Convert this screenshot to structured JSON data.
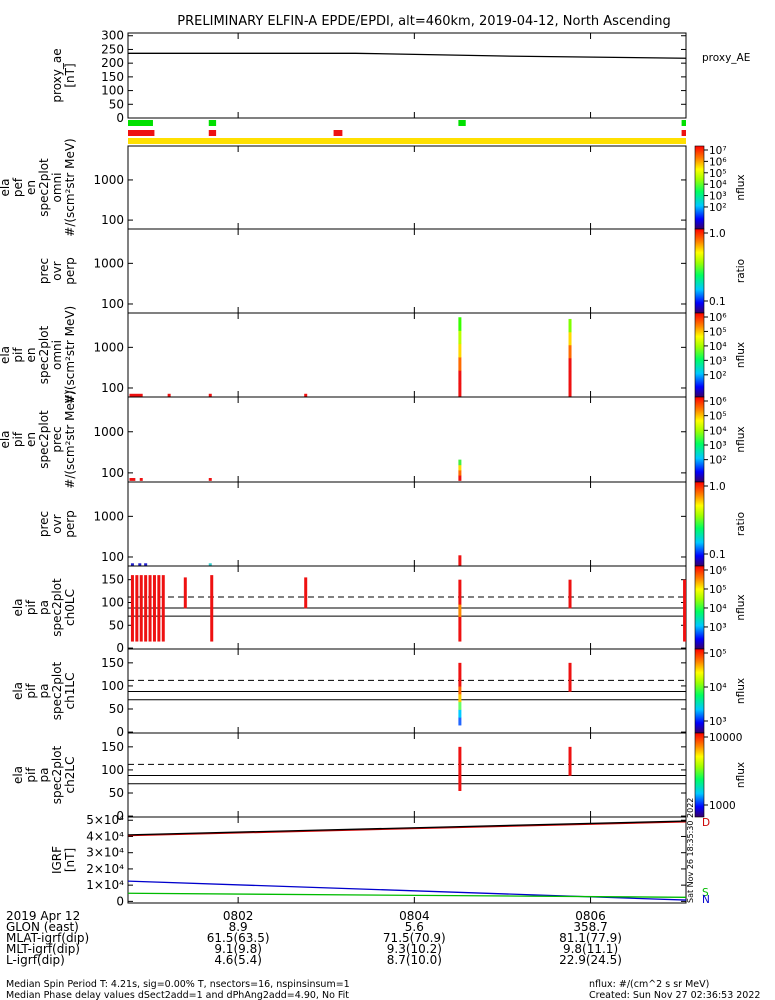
{
  "title": "PRELIMINARY ELFIN-A EPDE/EPDI, alt=460km, 2019-04-12, North Ascending",
  "side_stamp": "Sat Nov 26 18:35:30 2022",
  "footer": {
    "left_lines": [
      "Median Spin Period T: 4.21s, sig=0.00% T, nsectors=16, nspinsinsum=1",
      "Median Phase delay values dSect2add=1 and dPhAng2add=4.90, No Fit"
    ],
    "right_lines": [
      "nflux: #/(cm^2 s sr MeV)",
      "Created: Sun Nov 27 02:36:53 2022"
    ]
  },
  "colorbar_labels": {
    "nflux": "nflux",
    "ratio": "ratio",
    "D": "D",
    "S": "S",
    "N": "N"
  },
  "chart_data": {
    "type": "multi-panel time series / spectrograms",
    "x_axis": {
      "unit": "time (UT)",
      "range": [
        "08:00:45",
        "08:07:05"
      ],
      "tick_labels": [
        "0802",
        "0804",
        "0806"
      ],
      "tick_times": [
        "08:02",
        "08:04",
        "08:06"
      ]
    },
    "orbit_table": {
      "rows": [
        {
          "label": "2019 Apr 12",
          "values": [
            "0802",
            "0804",
            "0806"
          ]
        },
        {
          "label": "GLON (east)",
          "values": [
            "8.9",
            "5.6",
            "358.7"
          ]
        },
        {
          "label": "MLAT-igrf(dip)",
          "values": [
            "61.5(63.5)",
            "71.5(70.9)",
            "81.1(77.9)"
          ]
        },
        {
          "label": "MLT-igrf(dip)",
          "values": [
            "9.1(9.8)",
            "9.3(10.2)",
            "9.8(11.1)"
          ]
        },
        {
          "label": "L-igrf(dip)",
          "values": [
            "4.6(5.4)",
            "8.7(10.0)",
            "22.9(24.5)"
          ]
        }
      ]
    },
    "panels": [
      {
        "id": "proxy_ae",
        "ylabel": [
          "proxy_ae",
          "[nT]"
        ],
        "yticks": [
          "300",
          "250",
          "200",
          "150",
          "100",
          "50",
          "0"
        ],
        "ytick_values": [
          300,
          250,
          200,
          150,
          100,
          50,
          0
        ],
        "ylim": [
          0,
          310
        ],
        "legend": "proxy_AE",
        "series": [
          {
            "name": "proxy_AE",
            "x": [
              "08:00:45",
              "08:03:20",
              "08:05:00",
              "08:07:05"
            ],
            "y": [
              236,
              236,
              226,
              218
            ]
          }
        ]
      },
      {
        "id": "flags",
        "bars": [
          {
            "color": "#00e000",
            "segments": [
              [
                "08:00:45",
                "08:01:02"
              ],
              [
                "08:01:40",
                "08:01:45"
              ],
              [
                "08:04:30",
                "08:04:35"
              ],
              [
                "08:07:02",
                "08:07:05"
              ]
            ]
          },
          {
            "color": "#ee1111",
            "segments": [
              [
                "08:00:45",
                "08:01:03"
              ],
              [
                "08:01:40",
                "08:01:45"
              ],
              [
                "08:03:05",
                "08:03:11"
              ],
              [
                "08:07:02",
                "08:07:05"
              ]
            ]
          },
          {
            "color": "#ffe000",
            "segments": [
              [
                "08:00:45",
                "08:07:05"
              ]
            ]
          }
        ]
      },
      {
        "id": "ela_pef_omni",
        "ylabel": [
          "ela",
          "pef",
          "en",
          "spec2plot",
          "omni",
          "#/(scm²str MeV)"
        ],
        "log": true,
        "yticks": [
          "1000",
          "100"
        ],
        "ytick_values": [
          1000,
          100
        ],
        "ylim": [
          60,
          7000
        ],
        "marks": []
      },
      {
        "id": "pef_prec_ratio",
        "ylabel": [
          "prec",
          "ovr",
          "perp"
        ],
        "log": true,
        "yticks": [
          "1000",
          "100"
        ],
        "ytick_values": [
          1000,
          100
        ],
        "ylim": [
          60,
          7000
        ],
        "marks": []
      },
      {
        "id": "ela_pif_omni",
        "ylabel": [
          "ela",
          "pif",
          "en",
          "spec2plot",
          "omni",
          "#/(scm²str MeV)"
        ],
        "log": true,
        "yticks": [
          "1000",
          "100"
        ],
        "ytick_values": [
          1000,
          100
        ],
        "ylim": [
          60,
          7000
        ],
        "marks": [
          {
            "t": "08:00:46",
            "t2": "08:00:55",
            "y_lo": 60,
            "y_hi": 72,
            "colors": [
              "#ee1111"
            ]
          },
          {
            "t": "08:01:12",
            "y_lo": 62,
            "y_hi": 72,
            "colors": [
              "#ee1111"
            ]
          },
          {
            "t": "08:01:40",
            "y_lo": 62,
            "y_hi": 72,
            "colors": [
              "#ee1111"
            ]
          },
          {
            "t": "08:02:45",
            "y_lo": 62,
            "y_hi": 72,
            "colors": [
              "#ee1111"
            ]
          },
          {
            "t": "08:04:30",
            "y_lo": 60,
            "y_hi": 5500,
            "colors": [
              "#ee1111",
              "#ee1111",
              "#ff6a00",
              "#ffd800",
              "#b8ff00",
              "#38ff00"
            ]
          },
          {
            "t": "08:05:45",
            "y_lo": 60,
            "y_hi": 5000,
            "colors": [
              "#ee1111",
              "#ee1111",
              "#ee1111",
              "#ff6a00",
              "#ffd800",
              "#7fff00"
            ]
          }
        ]
      },
      {
        "id": "ela_pif_prec",
        "ylabel": [
          "ela",
          "pif",
          "en",
          "spec2plot",
          "prec",
          "#/(scm²str MeV)"
        ],
        "log": true,
        "yticks": [
          "1000",
          "100"
        ],
        "ytick_values": [
          1000,
          100
        ],
        "ylim": [
          60,
          7000
        ],
        "marks": [
          {
            "t": "08:00:46",
            "t2": "08:00:50",
            "y_lo": 65,
            "y_hi": 75,
            "colors": [
              "#ee1111"
            ]
          },
          {
            "t": "08:00:53",
            "y_lo": 65,
            "y_hi": 75,
            "colors": [
              "#ee1111"
            ]
          },
          {
            "t": "08:01:40",
            "y_lo": 65,
            "y_hi": 75,
            "colors": [
              "#ee1111"
            ]
          },
          {
            "t": "08:04:30",
            "y_lo": 65,
            "y_hi": 210,
            "colors": [
              "#ee1111",
              "#ff6a00",
              "#ffd800",
              "#44ee44"
            ]
          }
        ]
      },
      {
        "id": "pif_prec_ratio",
        "ylabel": [
          "prec",
          "ovr",
          "perp"
        ],
        "log": true,
        "yticks": [
          "1000",
          "100"
        ],
        "ytick_values": [
          1000,
          100
        ],
        "ylim": [
          60,
          7000
        ],
        "marks": [
          {
            "t": "08:00:47",
            "y_lo": 60,
            "y_hi": 70,
            "colors": [
              "#2222cc"
            ]
          },
          {
            "t": "08:00:52",
            "y_lo": 60,
            "y_hi": 70,
            "colors": [
              "#2222cc"
            ]
          },
          {
            "t": "08:00:56",
            "y_lo": 60,
            "y_hi": 70,
            "colors": [
              "#2222cc"
            ]
          },
          {
            "t": "08:01:40",
            "y_lo": 60,
            "y_hi": 70,
            "colors": [
              "#33cccc"
            ]
          },
          {
            "t": "08:04:30",
            "y_lo": 60,
            "y_hi": 110,
            "colors": [
              "#ee1111"
            ]
          }
        ]
      },
      {
        "id": "ch0LC",
        "ylabel": [
          "ela",
          "pif",
          "pa",
          "spec2plot",
          "ch0LC"
        ],
        "log": false,
        "yticks": [
          "150",
          "100",
          "50",
          "0"
        ],
        "ytick_values": [
          150,
          100,
          50,
          0
        ],
        "ylim": [
          -2,
          180
        ],
        "ref_lines": {
          "dashed": 112,
          "solid": [
            88,
            70
          ]
        },
        "marks": [
          {
            "t": "08:00:47",
            "y_lo": 15,
            "y_hi": 160,
            "colors": [
              "#ee1111"
            ]
          },
          {
            "t": "08:00:50",
            "y_lo": 15,
            "y_hi": 160,
            "colors": [
              "#ee1111"
            ]
          },
          {
            "t": "08:00:53",
            "y_lo": 15,
            "y_hi": 160,
            "colors": [
              "#ee1111"
            ]
          },
          {
            "t": "08:00:56",
            "y_lo": 15,
            "y_hi": 160,
            "colors": [
              "#ee1111"
            ]
          },
          {
            "t": "08:00:59",
            "y_lo": 15,
            "y_hi": 160,
            "colors": [
              "#ee1111"
            ]
          },
          {
            "t": "08:01:02",
            "y_lo": 15,
            "y_hi": 160,
            "colors": [
              "#ee1111"
            ]
          },
          {
            "t": "08:01:05",
            "y_lo": 15,
            "y_hi": 160,
            "colors": [
              "#ee1111"
            ]
          },
          {
            "t": "08:01:08",
            "y_lo": 15,
            "y_hi": 160,
            "colors": [
              "#ee1111"
            ]
          },
          {
            "t": "08:01:23",
            "y_lo": 88,
            "y_hi": 155,
            "colors": [
              "#ee1111"
            ]
          },
          {
            "t": "08:01:41",
            "y_lo": 15,
            "y_hi": 160,
            "colors": [
              "#ee1111"
            ]
          },
          {
            "t": "08:02:45",
            "y_lo": 88,
            "y_hi": 155,
            "colors": [
              "#ee1111"
            ]
          },
          {
            "t": "08:04:30",
            "y_lo": 15,
            "y_hi": 150,
            "colors": [
              "#ee1111",
              "#ee1111",
              "#ff8800",
              "#ee1111",
              "#ee1111"
            ]
          },
          {
            "t": "08:05:45",
            "y_lo": 88,
            "y_hi": 150,
            "colors": [
              "#ee1111"
            ]
          },
          {
            "t": "08:07:03",
            "y_lo": 15,
            "y_hi": 150,
            "colors": [
              "#ee1111"
            ]
          }
        ]
      },
      {
        "id": "ch1LC",
        "ylabel": [
          "ela",
          "pif",
          "pa",
          "spec2plot",
          "ch1LC"
        ],
        "log": false,
        "yticks": [
          "150",
          "100",
          "50",
          "0"
        ],
        "ytick_values": [
          150,
          100,
          50,
          0
        ],
        "ylim": [
          -2,
          180
        ],
        "ref_lines": {
          "dashed": 112,
          "solid": [
            88,
            70
          ]
        },
        "marks": [
          {
            "t": "08:04:30",
            "y_lo": 15,
            "y_hi": 150,
            "colors": [
              "#2266ff",
              "#00ccff",
              "#66ff66",
              "#ffcc00",
              "#ff6600",
              "#ee1111",
              "#ee1111",
              "#ee1111"
            ]
          },
          {
            "t": "08:05:45",
            "y_lo": 88,
            "y_hi": 150,
            "colors": [
              "#ee1111"
            ]
          }
        ]
      },
      {
        "id": "ch2LC",
        "ylabel": [
          "ela",
          "pif",
          "pa",
          "spec2plot",
          "ch2LC"
        ],
        "log": false,
        "yticks": [
          "150",
          "100",
          "50",
          "0"
        ],
        "ytick_values": [
          150,
          100,
          50,
          0
        ],
        "ylim": [
          -2,
          180
        ],
        "ref_lines": {
          "dashed": 112,
          "solid": [
            88,
            70
          ]
        },
        "marks": [
          {
            "t": "08:04:30",
            "y_lo": 55,
            "y_hi": 150,
            "colors": [
              "#ee1111"
            ]
          },
          {
            "t": "08:05:45",
            "y_lo": 88,
            "y_hi": 150,
            "colors": [
              "#ee1111"
            ]
          }
        ]
      },
      {
        "id": "igrf",
        "ylabel": [
          "IGRF",
          "[nT]"
        ],
        "yticks": [
          "5×10⁴",
          "4×10⁴",
          "3×10⁴",
          "2×10⁴",
          "1×10⁴",
          "0"
        ],
        "ytick_values": [
          50000,
          40000,
          30000,
          20000,
          10000,
          0
        ],
        "ylim": [
          -1000,
          52000
        ],
        "series": [
          {
            "name": "D",
            "color": "#cc0000",
            "x": [
              "08:00:45",
              "08:07:05"
            ],
            "y": [
              40500,
              49000
            ]
          },
          {
            "name": "D",
            "color": "#000000",
            "x": [
              "08:00:45",
              "08:07:05"
            ],
            "y": [
              41000,
              49500
            ]
          },
          {
            "name": "N",
            "color": "#0000cc",
            "x": [
              "08:00:45",
              "08:07:05"
            ],
            "y": [
              12500,
              800
            ]
          },
          {
            "name": "S",
            "color": "#00bb00",
            "x": [
              "08:00:45",
              "08:07:05"
            ],
            "y": [
              5000,
              2500
            ]
          }
        ]
      }
    ],
    "colorbars": [
      {
        "label": "nflux",
        "scale": "log",
        "tick_labels": [
          "10⁷",
          "10⁶",
          "10⁵",
          "10⁴",
          "10³",
          "10²"
        ]
      },
      {
        "label": "ratio",
        "scale": "log",
        "tick_labels": [
          "1.0",
          "0.1"
        ]
      },
      {
        "label": "nflux",
        "scale": "log",
        "tick_labels": [
          "10⁶",
          "10⁵",
          "10⁴",
          "10³",
          "10²"
        ]
      },
      {
        "label": "nflux",
        "scale": "log",
        "tick_labels": [
          "10⁶",
          "10⁵",
          "10⁴",
          "10³",
          "10²"
        ]
      },
      {
        "label": "ratio",
        "scale": "log",
        "tick_labels": [
          "1.0",
          "0.1"
        ]
      },
      {
        "label": "nflux",
        "scale": "log",
        "tick_labels": [
          "10⁶",
          "10⁵",
          "10⁴",
          "10³"
        ]
      },
      {
        "label": "nflux",
        "scale": "log",
        "tick_labels": [
          "10⁵",
          "10⁴",
          "10³"
        ]
      },
      {
        "label": "nflux",
        "scale": "log",
        "tick_labels": [
          "10000",
          "1000"
        ]
      }
    ]
  }
}
